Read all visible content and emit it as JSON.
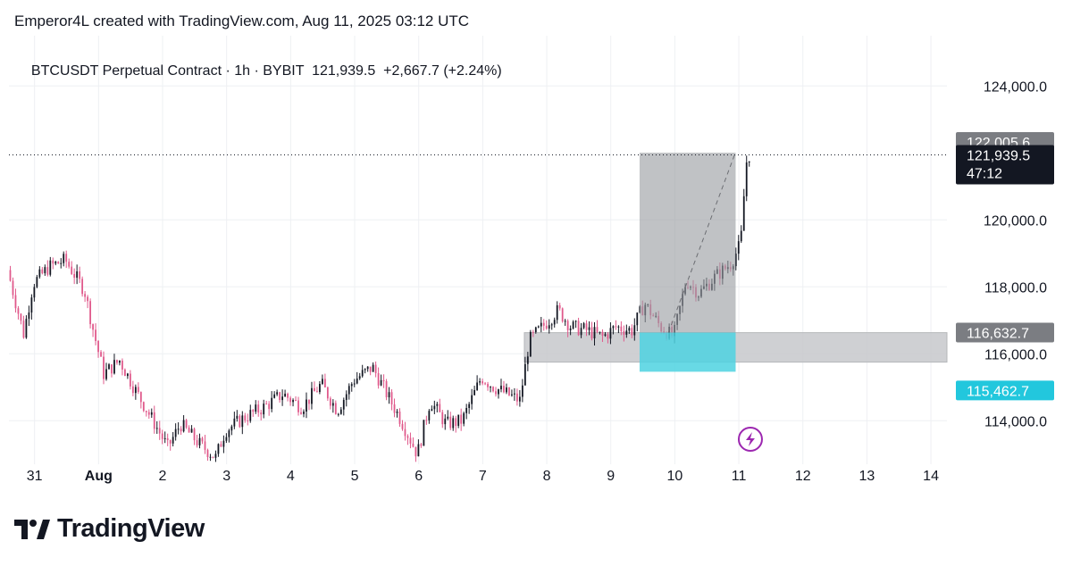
{
  "attribution": "Emperor4L created with TradingView.com, Aug 11, 2025 03:12 UTC",
  "legend": {
    "symbol": "BTCUSDT Perpetual Contract · 1h · BYBIT",
    "price": "121,939.5",
    "change": "+2,667.7 (+2.24%)"
  },
  "price_tags": {
    "target": "122,005.6",
    "last": "121,939.5",
    "countdown": "47:12",
    "entry": "116,632.7",
    "stop": "115,462.7"
  },
  "colors": {
    "up": "#131722",
    "down": "#e0598b",
    "profit_zone": "#9a9ca1",
    "stop_zone": "#4dd2e0",
    "support_zone": "#c7c8cb",
    "grid": "#eef0f3",
    "axis_text": "#131722"
  },
  "icons": {
    "event": "lightning-icon",
    "logo": "tradingview-logo-icon"
  },
  "logo_text": "TradingView",
  "chart_data": {
    "type": "candlestick",
    "title": "",
    "x_ticks": [
      "31",
      "Aug",
      "2",
      "3",
      "4",
      "5",
      "6",
      "7",
      "8",
      "9",
      "10",
      "11",
      "12",
      "13",
      "14"
    ],
    "x_tick_days": [
      -1,
      0,
      1,
      2,
      3,
      4,
      5,
      6,
      7,
      8,
      9,
      10,
      11,
      12,
      13
    ],
    "y_ticks": [
      114000,
      116000,
      118000,
      120000,
      124000
    ],
    "y_tick_labels": [
      "114,000.0",
      "116,000.0",
      "118,000.0",
      "120,000.0",
      "124,000.0"
    ],
    "ylim": [
      112700,
      125500
    ],
    "xlim_days": [
      -1.4,
      13.25
    ],
    "last_price": 121939.5,
    "position": {
      "start_day": 8.45,
      "end_day": 9.95,
      "entry": 116632.7,
      "target": 122005.6,
      "stop": 115462.7
    },
    "support_zone": {
      "start_day": 6.65,
      "end_day": 13.25,
      "top": 116630,
      "bottom": 115750
    },
    "path_days": [
      -1.4,
      -1.15,
      -1.0,
      -0.75,
      -0.5,
      -0.2,
      -0.05,
      0.1,
      0.35,
      0.6,
      0.9,
      1.1,
      1.3,
      1.6,
      1.85,
      2.0,
      2.3,
      2.6,
      2.9,
      3.2,
      3.5,
      3.75,
      4.0,
      4.3,
      4.55,
      4.75,
      5.0,
      5.2,
      5.45,
      5.7,
      6.0,
      6.2,
      6.4,
      6.6,
      6.75,
      6.95,
      7.2,
      7.4,
      7.65,
      7.9,
      8.1,
      8.35,
      8.55,
      8.8,
      9.0,
      9.2,
      9.4,
      9.65,
      9.9,
      10.05,
      10.1,
      10.15
    ],
    "path_prices": [
      118500,
      116600,
      118100,
      118600,
      118800,
      117900,
      116600,
      115400,
      115800,
      114900,
      113900,
      113200,
      113900,
      113300,
      112900,
      113700,
      114100,
      114400,
      114800,
      114400,
      115100,
      114300,
      115200,
      115600,
      114700,
      114000,
      113000,
      114600,
      113900,
      114000,
      115300,
      115000,
      114800,
      114600,
      116400,
      116800,
      117300,
      116800,
      116700,
      116500,
      116800,
      116700,
      117500,
      116800,
      116500,
      118200,
      117800,
      118300,
      118700,
      119300,
      120700,
      121939.5
    ]
  }
}
